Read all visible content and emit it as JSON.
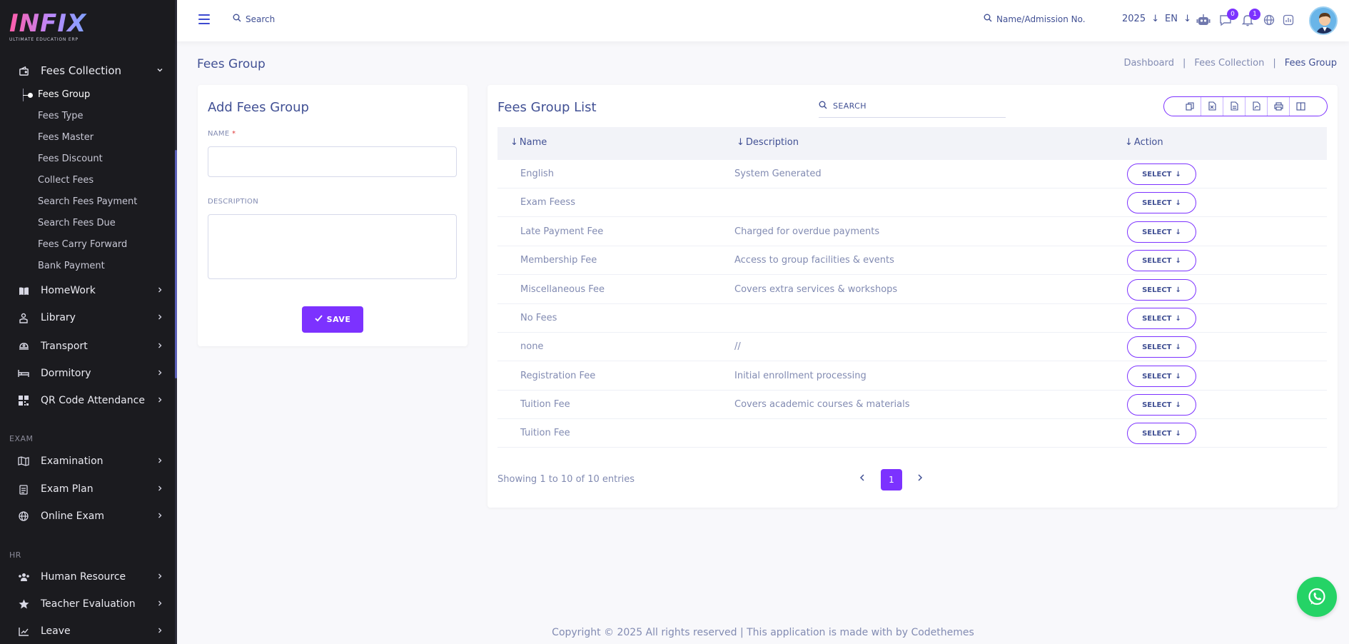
{
  "brand": {
    "logo_text": "INFIX",
    "logo_tagline": "ULTIMATE EDUCATION ERP"
  },
  "sidebar": {
    "fees_collection": {
      "label": "Fees Collection",
      "icon": "wallet-icon"
    },
    "sub_items": [
      {
        "label": "Fees Group",
        "active": true
      },
      {
        "label": "Fees Type"
      },
      {
        "label": "Fees Master"
      },
      {
        "label": "Fees Discount"
      },
      {
        "label": "Collect Fees"
      },
      {
        "label": "Search Fees Payment"
      },
      {
        "label": "Search Fees Due"
      },
      {
        "label": "Fees Carry Forward"
      },
      {
        "label": "Bank Payment"
      }
    ],
    "items": [
      {
        "label": "HomeWork",
        "icon": "book-icon"
      },
      {
        "label": "Library",
        "icon": "library-icon"
      },
      {
        "label": "Transport",
        "icon": "transport-icon"
      },
      {
        "label": "Dormitory",
        "icon": "bed-icon"
      },
      {
        "label": "QR Code Attendance",
        "icon": "qr-icon"
      }
    ],
    "exam_section": "EXAM",
    "exam_items": [
      {
        "label": "Examination",
        "icon": "map-icon"
      },
      {
        "label": "Exam Plan",
        "icon": "clipboard-icon"
      },
      {
        "label": "Online Exam",
        "icon": "globe-icon"
      }
    ],
    "hr_section": "HR",
    "hr_items": [
      {
        "label": "Human Resource",
        "icon": "users-icon"
      },
      {
        "label": "Teacher Evaluation",
        "icon": "star-icon"
      },
      {
        "label": "Leave",
        "icon": "leave-icon"
      }
    ]
  },
  "topbar": {
    "search_label": "Search",
    "name_search_label": "Name/Admission No.",
    "year": "2025",
    "lang": "EN",
    "chat_badge": "0",
    "notification_badge": "1"
  },
  "page": {
    "title": "Fees Group",
    "breadcrumb": [
      "Dashboard",
      "Fees Collection",
      "Fees Group"
    ],
    "breadcrumb_sep": "|"
  },
  "form": {
    "title": "Add Fees Group",
    "name_label": "NAME",
    "required_mark": "*",
    "name_value": "",
    "description_label": "DESCRIPTION",
    "description_value": "",
    "save_label": "SAVE"
  },
  "list": {
    "title": "Fees Group List",
    "search_placeholder": "SEARCH",
    "columns": [
      "Name",
      "Description",
      "Action"
    ],
    "select_label": "SELECT",
    "rows": [
      {
        "name": "English",
        "description": "System Generated"
      },
      {
        "name": "Exam Feess",
        "description": ""
      },
      {
        "name": "Late Payment Fee",
        "description": "Charged for overdue payments"
      },
      {
        "name": "Membership Fee",
        "description": "Access to group facilities & events"
      },
      {
        "name": "Miscellaneous Fee",
        "description": "Covers extra services & workshops"
      },
      {
        "name": "No Fees",
        "description": ""
      },
      {
        "name": "none",
        "description": "//"
      },
      {
        "name": "Registration Fee",
        "description": "Initial enrollment processing"
      },
      {
        "name": "Tuition Fee",
        "description": "Covers academic courses & materials"
      },
      {
        "name": "Tuition Fee",
        "description": ""
      }
    ],
    "entries_text": "Showing 1 to 10 of 10 entries",
    "current_page": "1"
  },
  "footer": {
    "text": "Copyright © 2025 All rights reserved | This application is made with by Codethemes"
  },
  "colors": {
    "accent": "#7c32ff",
    "sidebar_bg": "#1b1b1f",
    "text": "#415094",
    "muted": "#828bb2",
    "whatsapp": "#25d366"
  }
}
